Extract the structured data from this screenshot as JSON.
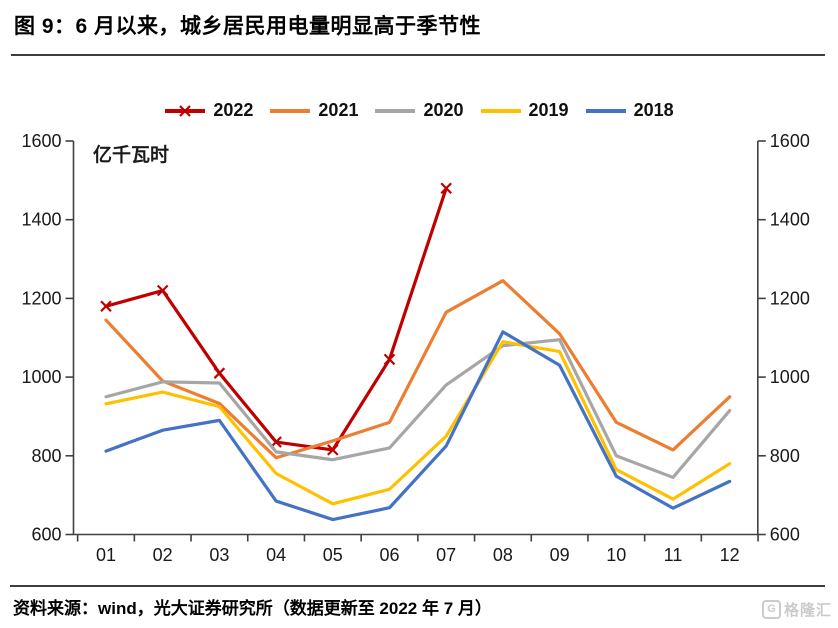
{
  "title": "图 9：6 月以来，城乡居民用电量明显高于季节性",
  "source": "资料来源：wind，光大证券研究所（数据更新至 2022 年 7 月）",
  "watermark": {
    "icon_letter": "G",
    "text": "格隆汇"
  },
  "chart_data": {
    "type": "line",
    "title": "图 9：6 月以来，城乡居民用电量明显高于季节性",
    "ylabel": "亿千瓦时",
    "xlabel": "",
    "categories": [
      "01",
      "02",
      "03",
      "04",
      "05",
      "06",
      "07",
      "08",
      "09",
      "10",
      "11",
      "12"
    ],
    "series": [
      {
        "name": "2022",
        "color": "#c00000",
        "marker": "x",
        "values": [
          1180,
          1220,
          1010,
          835,
          815,
          1045,
          1480,
          null,
          null,
          null,
          null,
          null
        ]
      },
      {
        "name": "2021",
        "color": "#ed7d31",
        "values": [
          1145,
          990,
          933,
          795,
          838,
          885,
          1165,
          1245,
          1110,
          885,
          815,
          950
        ]
      },
      {
        "name": "2020",
        "color": "#a6a6a6",
        "values": [
          950,
          988,
          985,
          810,
          790,
          820,
          980,
          1080,
          1095,
          800,
          745,
          915
        ]
      },
      {
        "name": "2019",
        "color": "#ffc000",
        "values": [
          932,
          962,
          925,
          755,
          678,
          715,
          850,
          1090,
          1065,
          765,
          690,
          780
        ]
      },
      {
        "name": "2018",
        "color": "#4472c4",
        "values": [
          812,
          865,
          890,
          685,
          638,
          668,
          825,
          1115,
          1030,
          748,
          667,
          735
        ]
      }
    ],
    "ylim": [
      600,
      1600
    ],
    "yticks": [
      600,
      800,
      1000,
      1200,
      1400,
      1600
    ],
    "grid": false,
    "dual_axis": true,
    "legend_position": "top"
  }
}
